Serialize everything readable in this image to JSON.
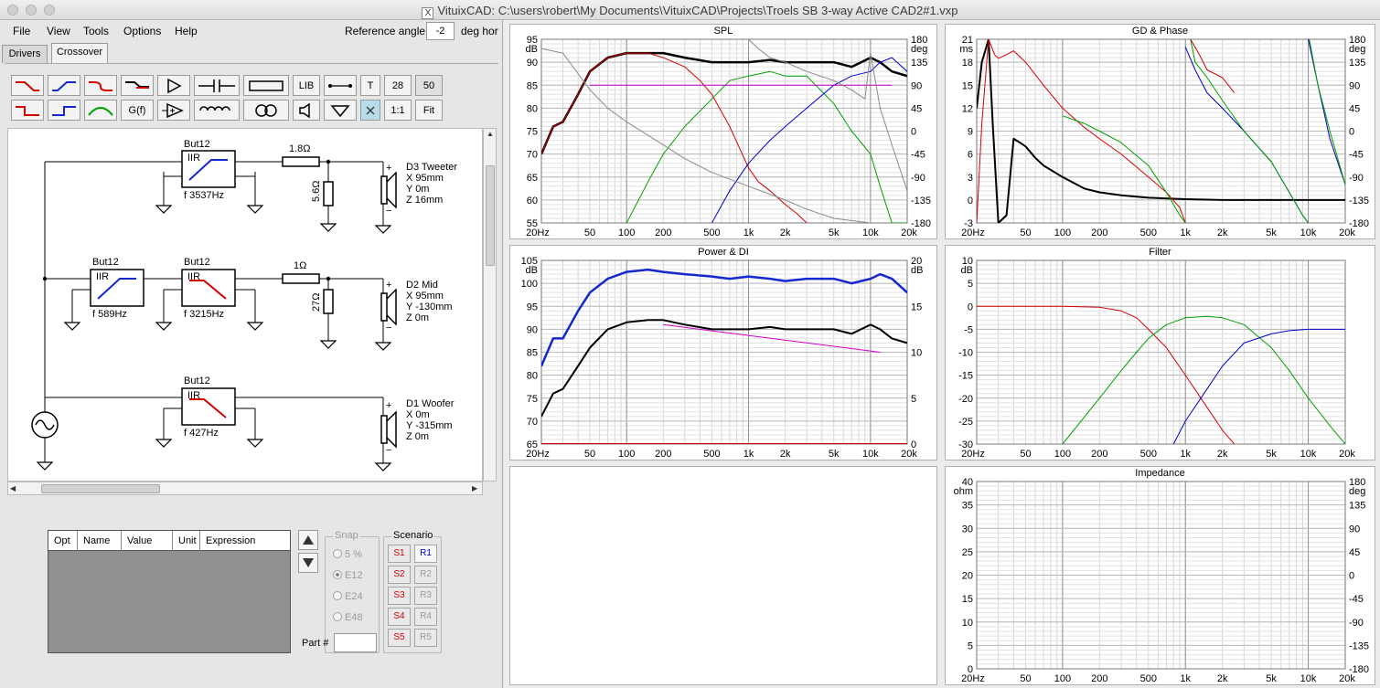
{
  "window": {
    "title": "VituixCAD: C:\\users\\robert\\My Documents\\VituixCAD\\Projects\\Troels SB 3-way Active CAD2#1.vxp",
    "x_glyph": "X"
  },
  "menu": {
    "file": "File",
    "view": "View",
    "tools": "Tools",
    "options": "Options",
    "help": "Help"
  },
  "reference": {
    "label": "Reference angle",
    "value": "-2",
    "unit": "deg hor"
  },
  "tabs": {
    "drivers": "Drivers",
    "crossover": "Crossover"
  },
  "toolbar": {
    "lib": "LIB",
    "t": "T",
    "n28": "28",
    "n50": "50",
    "gf": "G(f)",
    "one": "1:1",
    "fit": "Fit"
  },
  "schematic": {
    "tweeter_filter": {
      "type": "But12",
      "iir": "IIR",
      "freq": "f  3537Hz"
    },
    "tweeter_r_series": "1.8Ω",
    "tweeter_r_shunt": "5.6Ω",
    "tweeter": {
      "name": "D3 Tweeter",
      "x": "X 95mm",
      "y": "Y 0m",
      "z": "Z 16mm"
    },
    "mid_hp": {
      "type": "But12",
      "iir": "IIR",
      "freq": "f  589Hz"
    },
    "mid_lp": {
      "type": "But12",
      "iir": "IIR",
      "freq": "f  3215Hz"
    },
    "mid_r_series": "1Ω",
    "mid_r_shunt": "27Ω",
    "mid": {
      "name": "D2 Mid",
      "x": "X 95mm",
      "y": "Y -130mm",
      "z": "Z 0m"
    },
    "woofer_filter": {
      "type": "But12",
      "iir": "IIR",
      "freq": "f  427Hz"
    },
    "woofer": {
      "name": "D1 Woofer",
      "x": "X 0m",
      "y": "Y -315mm",
      "z": "Z 0m"
    },
    "plus": "+",
    "minus": "−"
  },
  "params": {
    "opt": "Opt",
    "name": "Name",
    "value": "Value",
    "unit": "Unit",
    "expression": "Expression"
  },
  "snap": {
    "label": "Snap",
    "options": [
      "5 %",
      "E12",
      "E24",
      "E48"
    ]
  },
  "scenario": {
    "label": "Scenario",
    "s": [
      "S1",
      "S2",
      "S3",
      "S4",
      "S5"
    ],
    "r": [
      "R1",
      "R2",
      "R3",
      "R4",
      "R5"
    ]
  },
  "part": {
    "label": "Part #"
  },
  "xticks": [
    "20Hz",
    "50",
    "100",
    "200",
    "500",
    "1k",
    "2k",
    "5k",
    "10k",
    "20k"
  ],
  "colors": {
    "black": "#000000",
    "red": "#d40000",
    "green": "#00a000",
    "blue": "#0000c8",
    "magenta": "#d000d0",
    "gray": "#8a8a8a",
    "thick_blue": "#1428d2"
  },
  "chart_data": [
    {
      "type": "line",
      "title": "SPL",
      "ylabel": "dB",
      "y2label": "deg",
      "yticks": [
        "95",
        "90",
        "85",
        "80",
        "75",
        "70",
        "65",
        "60",
        "55"
      ],
      "y2ticks": [
        "180",
        "135",
        "90",
        "45",
        "0",
        "-45",
        "-90",
        "-135",
        "-180"
      ],
      "xlim": [
        20,
        20000
      ],
      "ylim": [
        55,
        95
      ],
      "xscale": "log",
      "grid": true,
      "series": [
        {
          "color": "black",
          "width": 2.5,
          "x": [
            20,
            25,
            30,
            40,
            50,
            70,
            100,
            150,
            200,
            300,
            500,
            700,
            1000,
            1500,
            2000,
            3000,
            5000,
            7000,
            10000,
            12000,
            15000,
            20000
          ],
          "y": [
            70,
            76,
            77,
            83,
            88,
            91,
            92,
            92,
            92,
            91,
            90,
            90,
            90,
            90.5,
            90,
            90,
            90,
            89,
            91,
            90,
            88,
            87
          ]
        },
        {
          "color": "red",
          "width": 1,
          "x": [
            20,
            25,
            30,
            40,
            50,
            70,
            100,
            150,
            200,
            300,
            400,
            500,
            700,
            1000,
            1200,
            1500,
            2000,
            2500,
            3000
          ],
          "y": [
            70,
            76,
            77,
            83,
            88,
            91,
            92,
            92,
            91,
            89,
            86,
            83,
            76,
            67,
            64,
            62,
            59,
            57,
            55
          ]
        },
        {
          "color": "green",
          "width": 1,
          "x": [
            100,
            150,
            200,
            300,
            500,
            700,
            1000,
            1500,
            2000,
            3000,
            5000,
            7000,
            10000,
            12000,
            15000,
            20000
          ],
          "y": [
            55,
            64,
            70,
            76,
            82,
            86,
            87,
            88,
            87,
            87,
            81,
            75,
            70,
            63,
            55,
            55
          ]
        },
        {
          "color": "blue",
          "width": 1,
          "x": [
            500,
            700,
            1000,
            1500,
            2000,
            3000,
            5000,
            7000,
            10000,
            12000,
            15000,
            20000
          ],
          "y": [
            55,
            62,
            68,
            73,
            76,
            80,
            85,
            87,
            88,
            90,
            91,
            88
          ]
        },
        {
          "color": "magenta",
          "width": 1,
          "x": [
            50,
            15000
          ],
          "y": [
            85,
            85
          ]
        },
        {
          "color": "gray",
          "width": 1,
          "x": [
            20,
            30,
            50,
            70,
            100,
            200,
            300,
            500,
            1000,
            2000,
            3000,
            5000,
            10000
          ],
          "y": [
            93,
            92,
            84,
            80,
            77,
            72,
            69,
            66,
            63,
            60,
            58,
            56,
            55
          ]
        },
        {
          "color": "gray",
          "width": 1,
          "x": [
            1000,
            1200,
            1500,
            2000,
            3000,
            5000,
            7000,
            9000,
            10000,
            12000,
            15000,
            20000
          ],
          "y": [
            95,
            93,
            91,
            90,
            88,
            86,
            84,
            82,
            92,
            80,
            72,
            62
          ]
        }
      ]
    },
    {
      "type": "line",
      "title": "GD & Phase",
      "ylabel": "ms",
      "y2label": "deg",
      "yticks": [
        "21",
        "18",
        "15",
        "12",
        "9",
        "6",
        "3",
        "0",
        "-3"
      ],
      "y2ticks": [
        "180",
        "135",
        "90",
        "45",
        "0",
        "-45",
        "-90",
        "-135",
        "-180"
      ],
      "xlim": [
        20,
        20000
      ],
      "ylim": [
        -3,
        21
      ],
      "xscale": "log",
      "grid": true,
      "series": [
        {
          "color": "black",
          "width": 2,
          "x": [
            20,
            22,
            25,
            27,
            30,
            35,
            40,
            45,
            50,
            60,
            70,
            100,
            150,
            200,
            300,
            500,
            1000,
            2000,
            5000,
            10000,
            20000
          ],
          "y": [
            12,
            18,
            21,
            10,
            -3,
            -2,
            8,
            7.5,
            7,
            5.5,
            4.5,
            3,
            1.5,
            1,
            0.6,
            0.3,
            0.1,
            0,
            0,
            0,
            0
          ]
        },
        {
          "color": "red",
          "width": 1,
          "x": [
            20,
            22,
            25,
            28,
            30,
            35,
            40,
            50,
            70,
            100,
            150,
            200,
            300,
            500,
            700,
            900,
            1000
          ],
          "y": [
            -3,
            10,
            21,
            19,
            18.5,
            19,
            19.5,
            18,
            15,
            12,
            9.5,
            8,
            6,
            3,
            1,
            -1,
            -3
          ]
        },
        {
          "color": "green",
          "width": 1,
          "x": [
            100,
            150,
            200,
            300,
            500,
            700,
            900,
            1000
          ],
          "y": [
            11,
            10,
            9,
            7.5,
            4.5,
            1,
            -2,
            -3
          ]
        },
        {
          "color": "blue",
          "width": 1,
          "x": [
            1000,
            1200,
            1500,
            2000,
            3000,
            5000,
            7000,
            9000,
            10000
          ],
          "y": [
            20,
            17,
            14,
            12,
            9,
            5,
            1,
            -2,
            -3
          ]
        },
        {
          "color": "green",
          "width": 1,
          "x": [
            1100,
            1200,
            1500,
            2000,
            3000,
            5000,
            7000,
            9000,
            10000
          ],
          "y": [
            21,
            18,
            16,
            13,
            9,
            5,
            1,
            -2,
            -3
          ]
        },
        {
          "color": "red",
          "width": 1,
          "x": [
            1100,
            1300,
            1500,
            2000,
            2500
          ],
          "y": [
            21,
            19,
            17,
            16,
            14
          ]
        },
        {
          "color": "blue",
          "width": 1,
          "x": [
            10000,
            12000,
            15000,
            20000
          ],
          "y": [
            21,
            15,
            8,
            2
          ]
        },
        {
          "color": "green",
          "width": 1,
          "x": [
            10200,
            12000,
            15000,
            20000
          ],
          "y": [
            21,
            15,
            9,
            2
          ]
        }
      ]
    },
    {
      "type": "line",
      "title": "Power & DI",
      "ylabel": "dB",
      "y2label": "dB",
      "yticks": [
        "105",
        "100",
        "95",
        "90",
        "85",
        "80",
        "75",
        "70",
        "65"
      ],
      "y2ticks": [
        "20",
        "15",
        "10",
        "5",
        "0"
      ],
      "xlim": [
        20,
        20000
      ],
      "ylim": [
        65,
        105
      ],
      "xscale": "log",
      "grid": true,
      "series": [
        {
          "color": "thick_blue",
          "width": 2.5,
          "x": [
            20,
            25,
            30,
            40,
            50,
            70,
            100,
            150,
            200,
            300,
            500,
            700,
            1000,
            1500,
            2000,
            3000,
            5000,
            7000,
            10000,
            12000,
            15000,
            20000
          ],
          "y": [
            82,
            88,
            88,
            94,
            98,
            101,
            102.5,
            103,
            102.5,
            102,
            101.5,
            101,
            101.5,
            101,
            100.5,
            101,
            101,
            100,
            101,
            102,
            101,
            98
          ]
        },
        {
          "color": "black",
          "width": 2,
          "x": [
            20,
            25,
            30,
            40,
            50,
            70,
            100,
            150,
            200,
            300,
            500,
            700,
            1000,
            1500,
            2000,
            3000,
            5000,
            7000,
            10000,
            12000,
            15000,
            20000
          ],
          "y": [
            71,
            76,
            77,
            82,
            86,
            90,
            91.5,
            92,
            92,
            91,
            90,
            90,
            90,
            90.5,
            90,
            90,
            90,
            89,
            91,
            90,
            88,
            87
          ]
        },
        {
          "color": "magenta",
          "width": 1,
          "x": [
            200,
            12000
          ],
          "y": [
            91,
            85
          ]
        },
        {
          "color": "red",
          "width": 2,
          "x": [
            20,
            20000
          ],
          "y": [
            65,
            65
          ]
        }
      ]
    },
    {
      "type": "line",
      "title": "Filter",
      "ylabel": "dB",
      "yticks": [
        "10",
        "5",
        "0",
        "-5",
        "-10",
        "-15",
        "-20",
        "-25",
        "-30"
      ],
      "xlim": [
        20,
        20000
      ],
      "ylim": [
        -30,
        10
      ],
      "xscale": "log",
      "grid": true,
      "series": [
        {
          "color": "red",
          "width": 1,
          "x": [
            20,
            100,
            200,
            300,
            400,
            500,
            700,
            1000,
            1500,
            2000,
            2500
          ],
          "y": [
            0,
            0,
            -0.2,
            -1,
            -2.5,
            -5,
            -9,
            -15,
            -22,
            -27,
            -30
          ]
        },
        {
          "color": "green",
          "width": 1,
          "x": [
            100,
            200,
            300,
            400,
            500,
            700,
            1000,
            1500,
            2000,
            3000,
            5000,
            7000,
            10000,
            15000,
            20000
          ],
          "y": [
            -30,
            -20,
            -14,
            -10,
            -7,
            -4,
            -2.5,
            -2.2,
            -2.5,
            -4,
            -9,
            -14,
            -20,
            -26,
            -30
          ]
        },
        {
          "color": "blue",
          "width": 1,
          "x": [
            800,
            1000,
            1500,
            2000,
            3000,
            5000,
            7000,
            10000,
            20000
          ],
          "y": [
            -30,
            -25,
            -18,
            -13,
            -8,
            -6,
            -5.3,
            -5,
            -5
          ]
        }
      ]
    },
    {
      "type": "line",
      "title": "Impedance",
      "ylabel": "ohm",
      "y2label": "deg",
      "yticks": [
        "40",
        "35",
        "30",
        "25",
        "20",
        "15",
        "10",
        "5",
        "0"
      ],
      "y2ticks": [
        "180",
        "135",
        "90",
        "45",
        "0",
        "-45",
        "-90",
        "-135",
        "-180"
      ],
      "xlim": [
        20,
        20000
      ],
      "ylim": [
        0,
        40
      ],
      "xscale": "log",
      "grid": true,
      "series": []
    }
  ]
}
